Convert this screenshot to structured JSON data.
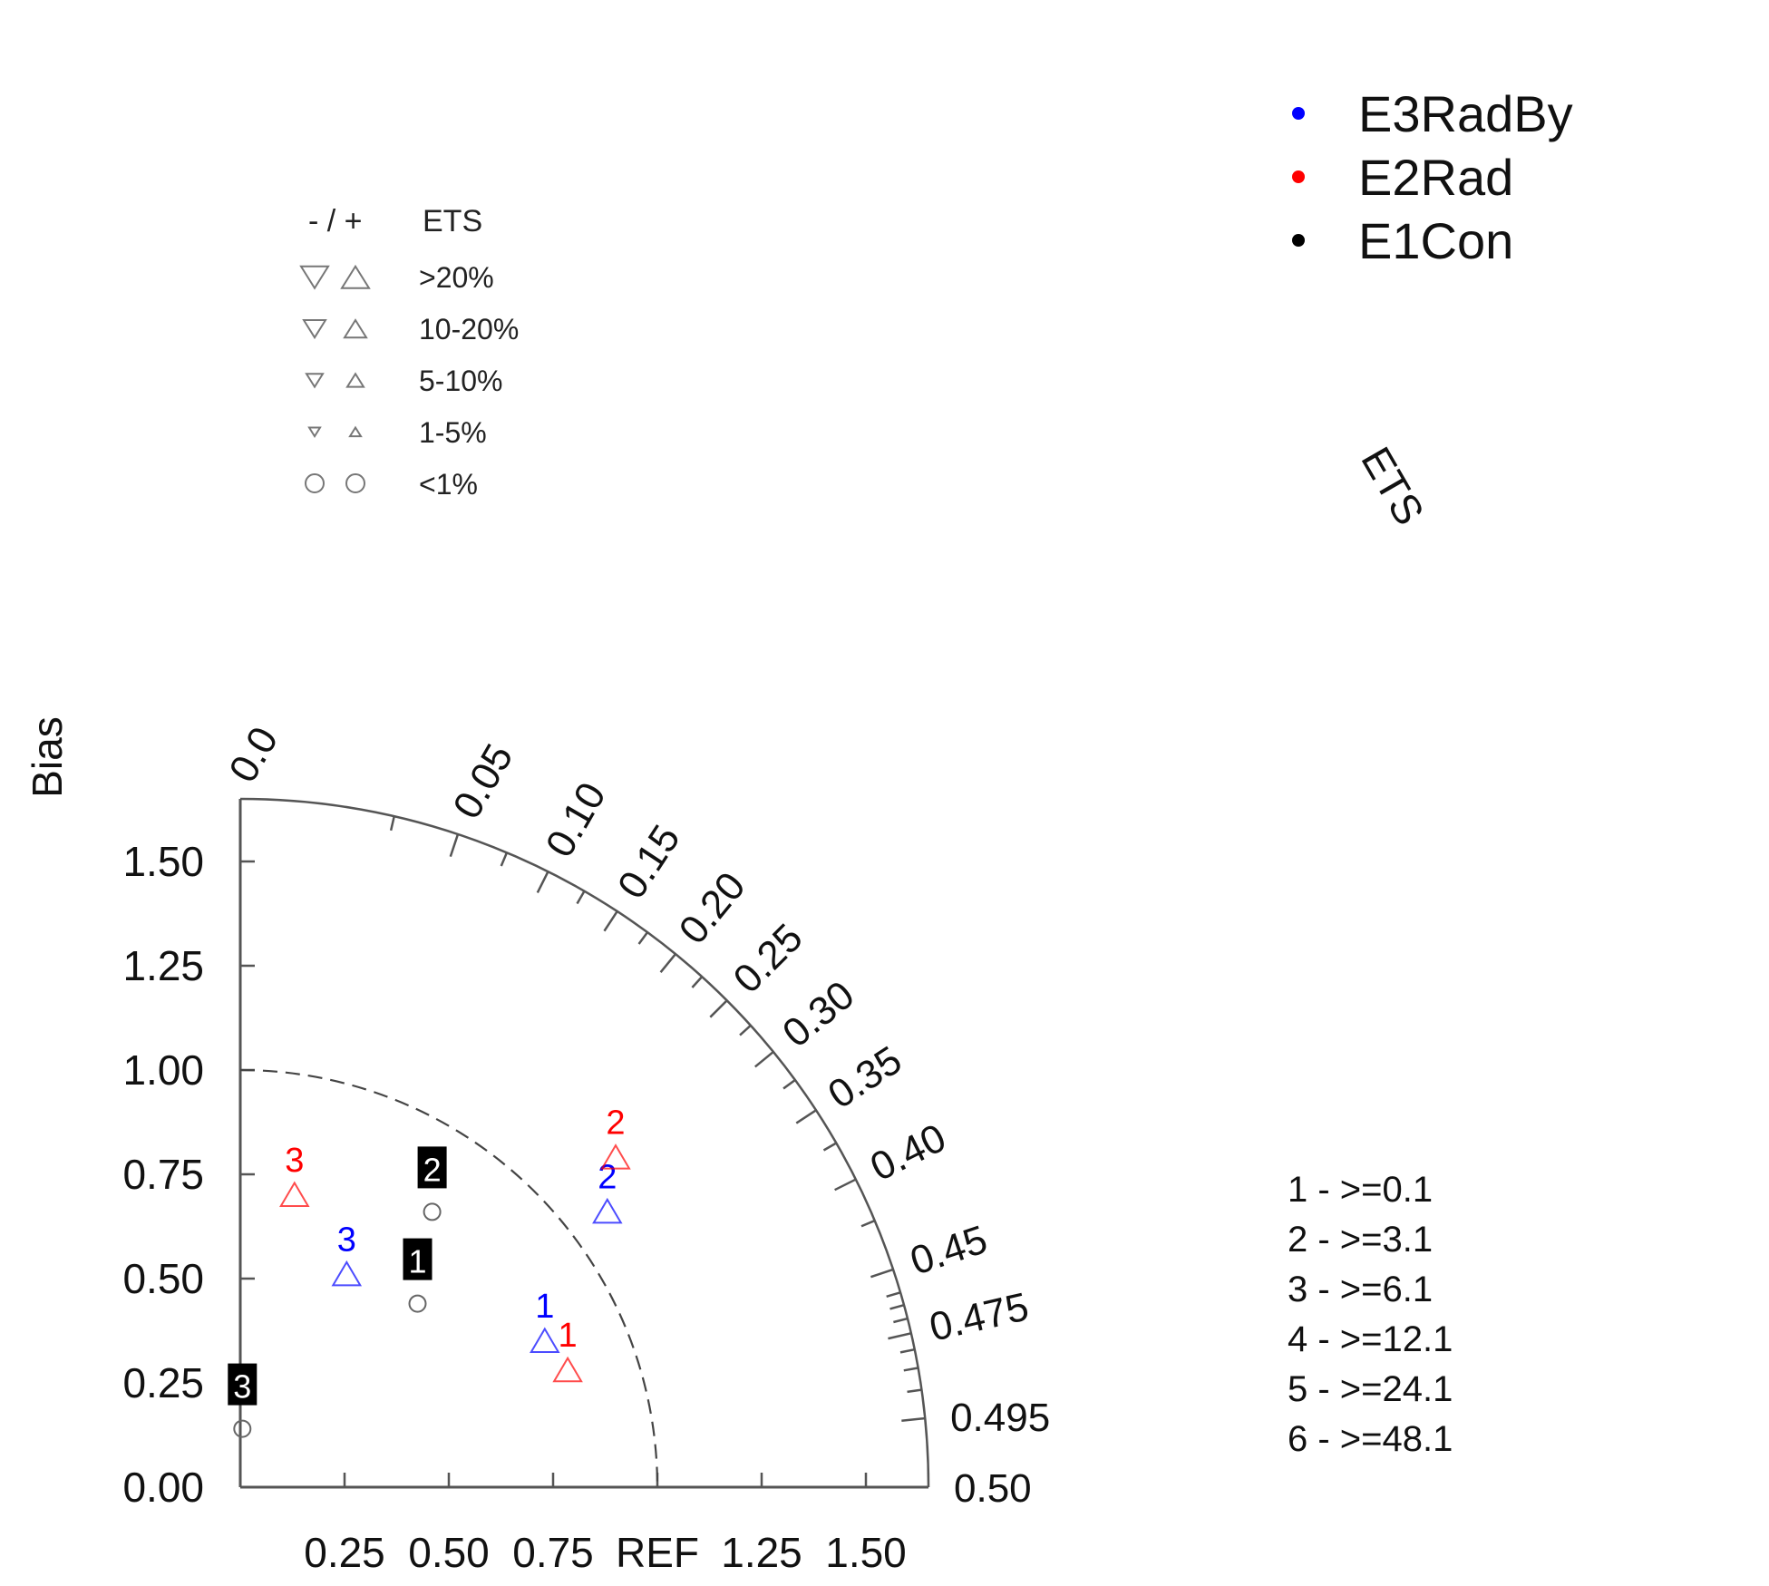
{
  "chart_data": {
    "type": "scatter",
    "subtype": "performance-diagram (radial ETS / Bias)",
    "ylabel": "Bias",
    "angular_label": "ETS",
    "x_ticks": [
      {
        "value": 0.25,
        "label": "0.25"
      },
      {
        "value": 0.5,
        "label": "0.50"
      },
      {
        "value": 0.75,
        "label": "0.75"
      },
      {
        "value": 1.0,
        "label": "REF"
      },
      {
        "value": 1.25,
        "label": "1.25"
      },
      {
        "value": 1.5,
        "label": "1.50"
      }
    ],
    "y_ticks": [
      {
        "value": 0.0,
        "label": "0.00"
      },
      {
        "value": 0.25,
        "label": "0.25"
      },
      {
        "value": 0.5,
        "label": "0.50"
      },
      {
        "value": 0.75,
        "label": "0.75"
      },
      {
        "value": 1.0,
        "label": "1.00"
      },
      {
        "value": 1.25,
        "label": "1.25"
      },
      {
        "value": 1.5,
        "label": "1.50"
      }
    ],
    "radius_max": 1.65,
    "reference_radius": 1.0,
    "ets_ticks": [
      {
        "value": 0.0,
        "label": "0.0"
      },
      {
        "value": 0.05,
        "label": "0.05"
      },
      {
        "value": 0.1,
        "label": "0.10"
      },
      {
        "value": 0.15,
        "label": "0.15"
      },
      {
        "value": 0.2,
        "label": "0.20"
      },
      {
        "value": 0.25,
        "label": "0.25"
      },
      {
        "value": 0.3,
        "label": "0.30"
      },
      {
        "value": 0.35,
        "label": "0.35"
      },
      {
        "value": 0.4,
        "label": "0.40"
      },
      {
        "value": 0.45,
        "label": "0.45"
      },
      {
        "value": 0.475,
        "label": "0.475"
      },
      {
        "value": 0.495,
        "label": "0.495"
      },
      {
        "value": 0.5,
        "label": "0.50"
      }
    ],
    "ets_minor_ticks": [
      0.025,
      0.075,
      0.125,
      0.175,
      0.225,
      0.275,
      0.325,
      0.375,
      0.425,
      0.46,
      0.465,
      0.47,
      0.48,
      0.485,
      0.49
    ],
    "series": [
      {
        "name": "E3RadBy",
        "color": "#0000ff",
        "marker": "triangle-up",
        "points": [
          {
            "label": "1",
            "x": 0.73,
            "y": 0.35
          },
          {
            "label": "2",
            "x": 0.88,
            "y": 0.66
          },
          {
            "label": "3",
            "x": 0.255,
            "y": 0.51
          }
        ]
      },
      {
        "name": "E2Rad",
        "color": "#ff0000",
        "marker": "triangle-up",
        "points": [
          {
            "label": "1",
            "x": 0.785,
            "y": 0.28
          },
          {
            "label": "2",
            "x": 0.9,
            "y": 0.79
          },
          {
            "label": "3",
            "x": 0.13,
            "y": 0.7
          }
        ]
      },
      {
        "name": "E1Con",
        "color": "#000000",
        "marker": "circle",
        "points": [
          {
            "label": "1",
            "x": 0.425,
            "y": 0.44
          },
          {
            "label": "2",
            "x": 0.46,
            "y": 0.66
          },
          {
            "label": "3",
            "x": 0.005,
            "y": 0.14
          }
        ]
      }
    ],
    "legend": {
      "placement": "top-right",
      "entries": [
        {
          "name": "E3RadBy",
          "color": "#0000ff"
        },
        {
          "name": "E2Rad",
          "color": "#ff0000"
        },
        {
          "name": "E1Con",
          "color": "#000000"
        }
      ]
    },
    "marker_key": {
      "header": [
        "- / +",
        "ETS"
      ],
      "rows": [
        ">20%",
        "10-20%",
        "5-10%",
        "1-5%",
        "<1%"
      ]
    },
    "threshold_key": [
      "1 - >=0.1",
      "2 - >=3.1",
      "3 - >=6.1",
      "4 - >=12.1",
      "5 - >=24.1",
      "6 - >=48.1"
    ],
    "grid": false
  }
}
